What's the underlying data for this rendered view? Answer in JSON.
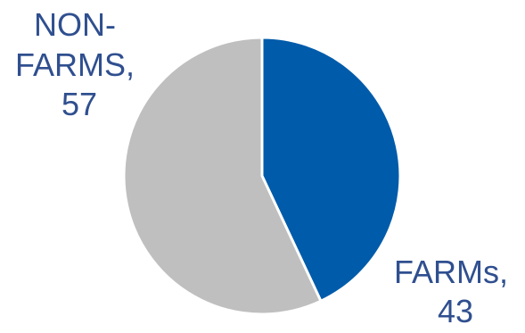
{
  "chart_data": {
    "type": "pie",
    "categories": [
      "FARMs",
      "NON-FARMS"
    ],
    "values": [
      43,
      57
    ],
    "colors": [
      "#005baa",
      "#bfbfbf"
    ],
    "data_labels": [
      [
        "FARMs,",
        "43"
      ],
      [
        "NON-",
        "FARMS,",
        "57"
      ]
    ],
    "label_color": "#2f4f8f",
    "start_angle": "12 o'clock",
    "direction": "clockwise",
    "title": "",
    "legend": "none"
  }
}
